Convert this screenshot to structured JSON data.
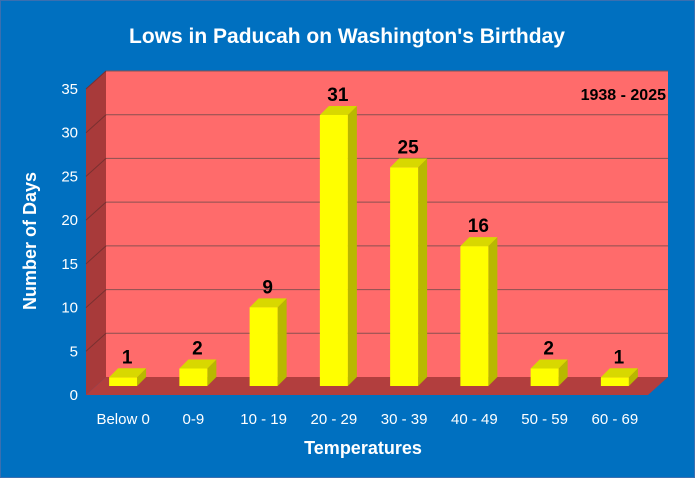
{
  "chart_data": {
    "type": "bar",
    "title": "Lows in Paducah on Washington's Birthday",
    "xlabel": "Temperatures",
    "ylabel": "Number of Days",
    "annotation": "1938 - 2025",
    "categories": [
      "Below 0",
      "0-9",
      "10 - 19",
      "20 - 29",
      "30 - 39",
      "40 - 49",
      "50 - 59",
      "60 - 69"
    ],
    "values": [
      1,
      2,
      9,
      31,
      25,
      16,
      2,
      1
    ],
    "ylim": [
      0,
      35
    ],
    "yticks": [
      0,
      5,
      10,
      15,
      20,
      25,
      30,
      35
    ],
    "grid": true,
    "legend": "none"
  },
  "colors": {
    "background": "#0070c0",
    "plot_area": "#ff6b6b",
    "side_wall": "#a83a3a",
    "floor": "#b23e3e",
    "bar_front": "#ffff00",
    "bar_side": "#b8b800",
    "bar_top": "#d8d800",
    "text": "#ffffff"
  }
}
